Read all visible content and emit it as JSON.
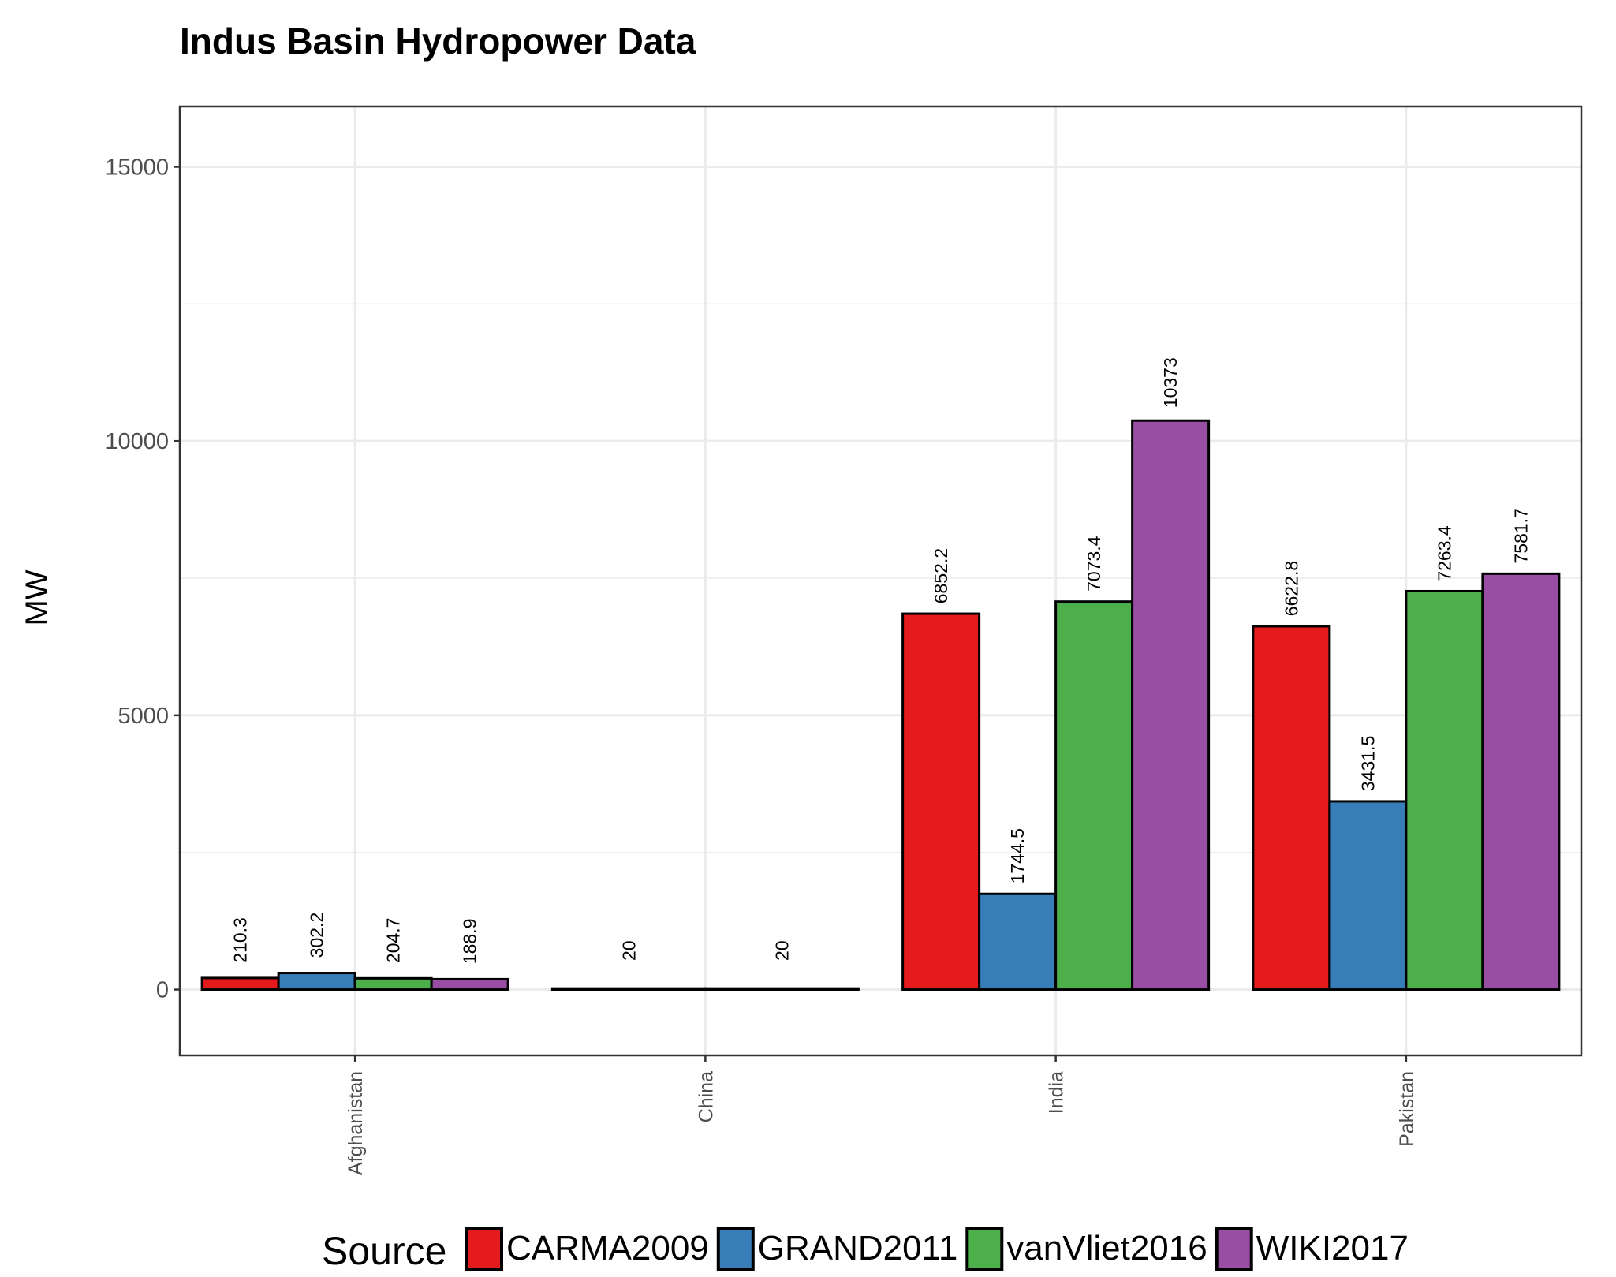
{
  "chart_data": {
    "type": "bar",
    "title": "Indus Basin Hydropower Data",
    "xlabel": "",
    "ylabel": "MW",
    "categories": [
      "Afghanistan",
      "China",
      "India",
      "Pakistan"
    ],
    "ylim": [
      -1200,
      16100
    ],
    "yticks": [
      0,
      5000,
      10000,
      15000
    ],
    "grid": true,
    "legend": {
      "title": "Source",
      "position": "bottom"
    },
    "series": [
      {
        "name": "CARMA2009",
        "color": "#e41a1c",
        "values": [
          210.3,
          20,
          6852.2,
          6622.8
        ],
        "labels": [
          "210.3",
          "20",
          "6852.2",
          "6622.8"
        ]
      },
      {
        "name": "GRAND2011",
        "color": "#377eb8",
        "values": [
          302.2,
          null,
          1744.5,
          3431.5
        ],
        "labels": [
          "302.2",
          "",
          "1744.5",
          "3431.5"
        ]
      },
      {
        "name": "vanVliet2016",
        "color": "#4daf4a",
        "values": [
          204.7,
          null,
          7073.4,
          7263.4
        ],
        "labels": [
          "204.7",
          "",
          "7073.4",
          "7263.4"
        ]
      },
      {
        "name": "WIKI2017",
        "color": "#984ea3",
        "values": [
          188.9,
          20,
          10373,
          7581.7
        ],
        "labels": [
          "188.9",
          "20",
          "10373",
          "7581.7"
        ]
      }
    ]
  }
}
